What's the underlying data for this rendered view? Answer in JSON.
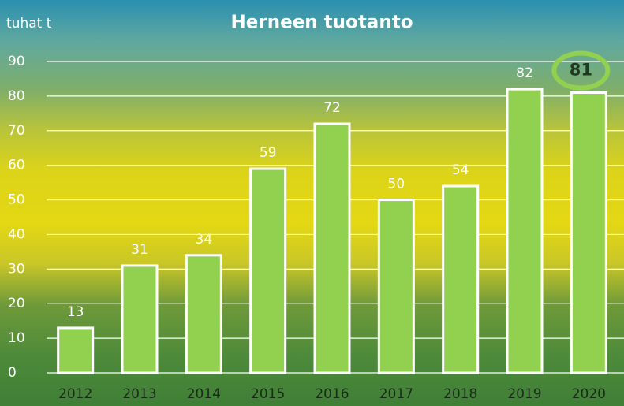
{
  "chart_data": {
    "type": "bar",
    "title": "Herneen tuotanto",
    "y_axis_label": "tuhat t",
    "categories": [
      "2012",
      "2013",
      "2014",
      "2015",
      "2016",
      "2017",
      "2018",
      "2019",
      "2020"
    ],
    "values": [
      13,
      31,
      34,
      59,
      72,
      50,
      54,
      82,
      81
    ],
    "color": "#92d050",
    "ylim": [
      0,
      90
    ],
    "yticks": [
      0,
      10,
      20,
      30,
      40,
      50,
      60,
      70,
      80,
      90
    ],
    "grid": true
  }
}
